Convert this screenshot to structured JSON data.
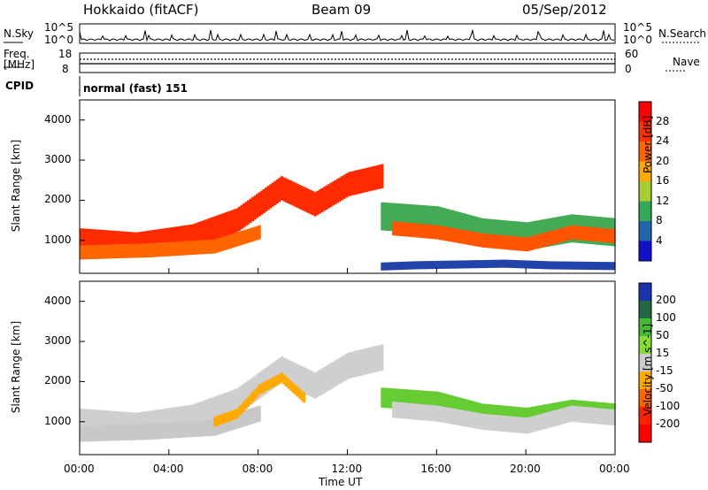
{
  "header": {
    "station": "Hokkaido (fitACF)",
    "beam": "Beam 09",
    "date": "05/Sep/2012"
  },
  "strips": {
    "nsky_label": "N.Sky",
    "nsky_ticks": [
      "10^5",
      "10^0"
    ],
    "nsearch_label": "N.Search",
    "freq_label_1": "Freq.",
    "freq_label_2": "[MHz]",
    "freq_ticks": [
      "18",
      "8"
    ],
    "nave_label": "Nave",
    "nave_ticks": [
      "60",
      "0"
    ],
    "cpid_label": "CPID",
    "cpid_text": "normal (fast) 151"
  },
  "chart_data": [
    {
      "type": "heatmap",
      "panel": "power",
      "ylabel": "Slant Range [km]",
      "yticks": [
        "4000",
        "3000",
        "2000",
        "1000"
      ],
      "ylim": [
        180,
        4500
      ],
      "xlim": [
        0,
        24
      ],
      "colorbar_label": "Power [dB]",
      "colorbar_ticks": [
        "28",
        "24",
        "20",
        "16",
        "12",
        "8",
        "4"
      ],
      "colorbar_colors": [
        "#ff0000",
        "#ff3300",
        "#ff6600",
        "#ffaa00",
        "#aacc33",
        "#33aa55",
        "#2266aa",
        "#1111cc"
      ],
      "bands": [
        {
          "t": [
            0,
            2.5,
            5,
            7,
            9,
            10.5,
            12,
            13.5
          ],
          "r": [
            1000,
            900,
            1100,
            1500,
            2300,
            1900,
            2400,
            2600
          ],
          "width": 600,
          "color": "#ff2a00"
        },
        {
          "t": [
            0,
            3,
            6,
            8
          ],
          "r": [
            700,
            750,
            850,
            1200
          ],
          "width": 350,
          "color": "#ff6600"
        },
        {
          "t": [
            13.5,
            16,
            18,
            20,
            22,
            24
          ],
          "r": [
            1600,
            1500,
            1200,
            1100,
            1300,
            1200
          ],
          "width": 700,
          "color": "#44aa55"
        },
        {
          "t": [
            14,
            16,
            18,
            20,
            22,
            24
          ],
          "r": [
            1300,
            1200,
            1000,
            900,
            1200,
            1100
          ],
          "width": 350,
          "color": "#ff5500"
        },
        {
          "t": [
            13.5,
            15,
            17,
            19,
            21,
            24
          ],
          "r": [
            350,
            380,
            400,
            420,
            380,
            360
          ],
          "width": 200,
          "color": "#2244aa"
        }
      ]
    },
    {
      "type": "heatmap",
      "panel": "velocity",
      "ylabel": "Slant Range [km]",
      "xlabel": "Time UT",
      "yticks": [
        "4000",
        "3000",
        "2000",
        "1000"
      ],
      "ylim": [
        180,
        4500
      ],
      "xlim": [
        0,
        24
      ],
      "xticks": [
        "00:00",
        "04:00",
        "08:00",
        "12:00",
        "16:00",
        "20:00",
        "00:00"
      ],
      "colorbar_label": "Velocity [m s^-1]",
      "colorbar_ticks": [
        "200",
        "100",
        "50",
        "15",
        "-15",
        "-50",
        "-100",
        "-200"
      ],
      "colorbar_colors": [
        "#1a33aa",
        "#226644",
        "#44bb33",
        "#88dd33",
        "#cccccc",
        "#ffaa00",
        "#ff6600",
        "#ff2200",
        "#ff0000"
      ],
      "bands": [
        {
          "t": [
            0,
            2.5,
            5,
            7,
            9,
            10.5,
            12,
            13.5
          ],
          "r": [
            1000,
            900,
            1100,
            1500,
            2300,
            1900,
            2400,
            2600
          ],
          "width": 650,
          "color": "#cfcfcf"
        },
        {
          "t": [
            0,
            3,
            6,
            8
          ],
          "r": [
            700,
            750,
            850,
            1200
          ],
          "width": 400,
          "color": "#c8c8c8"
        },
        {
          "t": [
            13.5,
            16,
            18,
            20,
            22,
            24
          ],
          "r": [
            1600,
            1500,
            1200,
            1100,
            1300,
            1200
          ],
          "width": 500,
          "color": "#66cc33"
        },
        {
          "t": [
            14,
            16,
            18,
            20,
            22,
            24
          ],
          "r": [
            1300,
            1200,
            1000,
            900,
            1200,
            1100
          ],
          "width": 400,
          "color": "#cfcfcf"
        },
        {
          "t": [
            6,
            7,
            8,
            9,
            10
          ],
          "r": [
            1000,
            1200,
            1800,
            2100,
            1600
          ],
          "width": 250,
          "color": "#ffaa00"
        }
      ]
    }
  ]
}
